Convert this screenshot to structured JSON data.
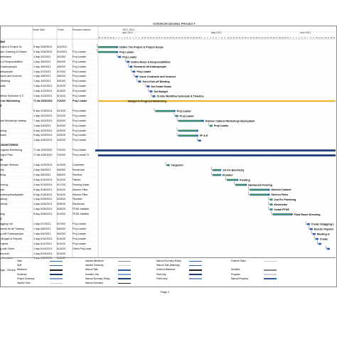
{
  "title": "INTERIOR DESING PROJECT",
  "header": {
    "col_start": "Durati Start",
    "col_finish": "Finish",
    "col_resource": "Resource Names",
    "timeline_top": [
      {
        "label": "OR 2, 2021",
        "col": 8
      },
      {
        "label": "April 2021",
        "col": 8
      },
      {
        "label": "May 2021",
        "col": 39
      },
      {
        "label": "June 2021",
        "col": 70
      }
    ],
    "day_ticks": [
      "26",
      "27",
      "28",
      "29",
      "30",
      "31",
      "1",
      "2",
      "3",
      "4",
      "5",
      "6",
      "7",
      "8",
      "9",
      "10",
      "11",
      "12",
      "13",
      "14",
      "15",
      "16",
      "17",
      "18",
      "19",
      "20",
      "21",
      "22",
      "23",
      "24",
      "25",
      "26",
      "27",
      "28",
      "29",
      "30",
      "1",
      "2",
      "3",
      "4",
      "5",
      "6",
      "7",
      "8",
      "9",
      "10",
      "11",
      "12",
      "13",
      "14",
      "15",
      "16",
      "17",
      "18",
      "19",
      "20",
      "21",
      "22",
      "23",
      "24",
      "25",
      "26",
      "27",
      "28",
      "29",
      "30",
      "31",
      "1",
      "2",
      "3",
      "4",
      "5",
      "6",
      "7",
      "8",
      "9",
      "10",
      "11",
      "12",
      "13",
      "14",
      "15",
      "16"
    ]
  },
  "tasks": [
    {
      "name": "NING",
      "start": "",
      "finish": "",
      "res": "",
      "b": true
    },
    {
      "name": "Project & Project Sc",
      "start": "5 day 3/26/2021",
      "finish": "4/1/2021",
      "res": ""
    },
    {
      "name": "cope, Drawing & Drawin",
      "start": "5 day 3/26/2021",
      "finish": "4/1/2021",
      "res": "Proj Leader"
    },
    {
      "name": "akeholders",
      "start": "1 day 4/2/2021",
      "finish": "4/2/202",
      "res": "Proj Leader"
    },
    {
      "name": "es & Responsibilities",
      "start": "1 day 4/5/2021",
      "finish": "4/5/202",
      "res": "Proj Leader"
    },
    {
      "name": "all tradespeople",
      "start": "1 day 4/6/2021",
      "finish": "4/6/202",
      "res": "Proj Leader"
    },
    {
      "name": "radespeople",
      "start": "1 day 4/7/2021",
      "finish": "4/7/202",
      "res": "Proj Leader"
    },
    {
      "name": "ntracts and Invoices",
      "start": "1 day 4/8/2021",
      "finish": "4/8/202",
      "res": "Proj Leader"
    },
    {
      "name": "ff Meeting",
      "start": "1 day 4/9/2021",
      "finish": "4/9/202",
      "res": "Proj Leader"
    },
    {
      "name": "Goals",
      "start": "1 day 4/12/2021",
      "finish": "4/12/20",
      "res": "Proj Leader"
    },
    {
      "name": "t",
      "start": "1 day 4/13/2021",
      "finish": "4/13/20",
      "res": "Proj Leader"
    },
    {
      "name": "orkflow Schedule & Ti",
      "start": "1 day 4/14/2021",
      "finish": "4/14/20",
      "res": "Proj Leader"
    },
    {
      "name": "gress Monitoring",
      "start": "71 da 3/26/2021",
      "finish": "7/2/202",
      "res": "Proj Leader",
      "b": true
    },
    {
      "name": "NT",
      "start": "",
      "finish": "",
      "res": "",
      "b": true
    },
    {
      "name": "",
      "start": "5 day 4/15/2021",
      "finish": "4/21/20",
      "res": "Proj Leader"
    },
    {
      "name": "",
      "start": "1 day 4/22/2021",
      "finish": "4/22/20",
      "res": "Proj Leader"
    },
    {
      "name": "binet Workshop/ backsp",
      "start": "7 day 4/23/2021",
      "finish": "5/3/202",
      "res": "Proj Leader"
    },
    {
      "name": "",
      "start": "1 day 5/4/2021",
      "finish": "5/4/202",
      "res": "Proj Leader"
    },
    {
      "name": "looring",
      "start": "5 day 4/23/2021",
      "finish": "4/29/20",
      "res": "Proj Leader"
    },
    {
      "name": "ixtures",
      "start": "5 day 4/23/2021",
      "finish": "4/29/20",
      "res": "Proj Leader"
    },
    {
      "name": "",
      "start": "1 day 4/30/2021",
      "finish": "4/30/20",
      "res": "Proj Leader"
    },
    {
      "name": "N MONITORING",
      "start": "",
      "finish": "",
      "res": "",
      "b": true
    },
    {
      "name": "Progress Monitoring",
      "start": "71 da 3/25/2021",
      "finish": "7/2/202",
      "res": "Proj Leader"
    },
    {
      "name": "Project Plan",
      "start": "71 da 3/26/2021",
      "finish": "7/2/202",
      "res": "Proj Leader,Tr"
    },
    {
      "name": "ON",
      "start": "",
      "finish": "",
      "res": "",
      "b": true
    },
    {
      "name": " Storage/ Shelves",
      "start": "1 day 4/19/2021",
      "finish": "4/19/20",
      "res": "Carpenter"
    },
    {
      "name": "ricity",
      "start": "2 day 5/5/2021",
      "finish": "5/6/202",
      "res": "Electrician"
    },
    {
      "name": "mbing",
      "start": "2 day 5/5/2021",
      "finish": "5/6/202",
      "res": "Plumber"
    },
    {
      "name": "",
      "start": "3 day 5/10/2021",
      "finish": "5/12/20",
      "res": "Painter"
    },
    {
      "name": " Flooring",
      "start": "3 day 5/13/2021",
      "finish": "5/17/20",
      "res": "Flooring Instal"
    },
    {
      "name": "binet",
      "start": "5 day 5/18/2021",
      "finish": "5/24/20",
      "res": "Kitchen Fitter"
    },
    {
      "name": "workshop/backsplash",
      "start": "5 day 5/18/2021",
      "finish": "5/24/20",
      "res": "Kitchen Fitter"
    },
    {
      "name": "umbing",
      "start": "1 day 5/25/2021",
      "finish": "5/25/20",
      "res": "Plumber"
    },
    {
      "name": "ectricity",
      "start": "1 day 5/25/2021",
      "finish": "5/25/20",
      "res": "Electrician"
    },
    {
      "name": "E",
      "start": "1 day 5/25/2021",
      "finish": "5/25/20",
      "res": "FF&E Installer"
    },
    {
      "name": "ssing",
      "start": "5 day 5/26/2021",
      "finish": "6/1/202",
      "res": "FF&E Installer"
    },
    {
      "name": "ZZ",
      "start": "",
      "finish": "",
      "res": "",
      "b": true
    },
    {
      "name": "nagging List",
      "start": "1 day 6/7/2021",
      "finish": "6/7/202",
      "res": "Proj Leader"
    },
    {
      "name": "yments for all Tradesp",
      "start": "1 day 6/8/2021",
      "finish": "6/8/202",
      "res": "Proj Leader"
    },
    {
      "name": "ng with Tradespeople",
      "start": "1 day 6/9/2021",
      "finish": "6/9/202",
      "res": "Proj Leader"
    },
    {
      "name": "al Budget & Reports",
      "start": "1 day 6/10/2021",
      "finish": "6/10/20",
      "res": "Proj Leader"
    },
    {
      "name": "Projects",
      "start": "1 day 6/11/2021",
      "finish": "6/11/20",
      "res": "Proj Leader"
    },
    {
      "name": "ng with Client",
      "start": "1 day 6/14/2021",
      "finish": "6/14/20",
      "res": "Client,Proj Lead"
    },
    {
      "name": "view and",
      "start": "1 day 6/23/2021",
      "finish": "6/23/20",
      "res": ""
    },
    {
      "name": "for the place",
      "start": "1 day 6/28/2021",
      "finish": "6/28/20",
      "res": ""
    }
  ],
  "bar_labels": [
    {
      "text": "Define The Project & Project Scope",
      "row": 1
    },
    {
      "text": "Proj Leader",
      "row": 2
    },
    {
      "text": "Proj Leader",
      "row": 3
    },
    {
      "text": "Define Roles & Responsibilities",
      "row": 4
    },
    {
      "text": "Research all tradespeople",
      "row": 5
    },
    {
      "text": "Proj Leader",
      "row": 6
    },
    {
      "text": "Issue Contracts and Invoices",
      "row": 7
    },
    {
      "text": "Set a Kick off Meeting",
      "row": 8
    },
    {
      "text": "Set Smart Goals",
      "row": 9
    },
    {
      "text": "Set Budget",
      "row": 10
    },
    {
      "text": "Create Workflow Schedule & Timeline",
      "row": 11
    },
    {
      "text": "Budget & Progress Monitoring",
      "row": 12
    },
    {
      "text": "Proj Leader",
      "row": 14
    },
    {
      "text": "Proj Leader",
      "row": 15
    },
    {
      "text": "Kitchen Cabinet Workshop/ backsplash",
      "row": 16
    },
    {
      "text": "Proj Leader",
      "row": 17
    },
    {
      "text": "FF & E",
      "row": 19
    },
    {
      "text": "Carpenter",
      "row": 25
    },
    {
      "text": "1st Fix Electricity",
      "row": 26
    },
    {
      "text": "Plumber",
      "row": 27
    },
    {
      "text": "Painting",
      "row": 28
    },
    {
      "text": "Hardwood Flooring",
      "row": 29
    },
    {
      "text": "Kitchen Cabinet",
      "row": 30
    },
    {
      "text": "Kitchen Fitter",
      "row": 31
    },
    {
      "text": "2nd Fix Plumbing",
      "row": 32
    },
    {
      "text": "Electrician",
      "row": 33
    },
    {
      "text": "Install FF&E",
      "row": 34
    },
    {
      "text": "Final Room Dressing",
      "row": 35
    },
    {
      "text": "Create Snagging L",
      "row": 37
    },
    {
      "text": "Ensure Paymen",
      "row": 38
    },
    {
      "text": "Meeting w",
      "row": 39
    },
    {
      "text": "Create",
      "row": 40
    }
  ],
  "legend": {
    "col1": [
      "Task",
      "Split",
      "Milestone",
      "Summary",
      "Project Summary",
      "Inactive Task"
    ],
    "col2": [
      "Inactive Milestone",
      "Inactive Summary",
      "Manual Task",
      "Duration-only",
      "Manual Summary Rollup",
      "Manual Summary"
    ],
    "col3": [
      "Manual Summary Rollup",
      "Manual Task (Warning)",
      "External Milestone",
      "Start-only",
      "Finish-only"
    ],
    "col4": [
      "External Tasks",
      "",
      "Deadline",
      "Progress",
      "Manual Progress"
    ]
  },
  "footer": {
    "left": "sign - Revise",
    "page": "Page 1"
  },
  "colors": {
    "task": "#2e5fa8",
    "summary": "#1c3f7a",
    "project_summary": "#e9b52b",
    "progress": "#41a83a",
    "grid": "#cfcfcf"
  }
}
